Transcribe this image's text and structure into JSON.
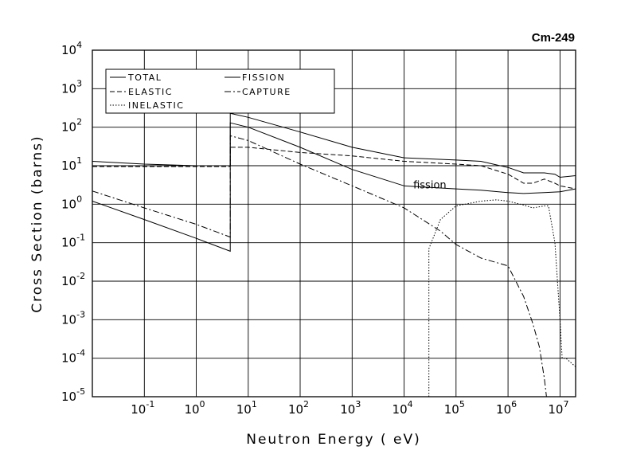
{
  "chart_data": {
    "type": "line",
    "title": "Cm-249",
    "xlabel": "Neutron Energy ( eV)",
    "ylabel": "Cross Section (barns)",
    "xscale": "log",
    "yscale": "log",
    "xlim": [
      0.01,
      20000000
    ],
    "ylim": [
      1e-05,
      10000
    ],
    "grid": true,
    "legend_position": "top-left",
    "x_ticks": [
      {
        "base": "10",
        "exp": "-1",
        "value": 0.1
      },
      {
        "base": "10",
        "exp": "0",
        "value": 1
      },
      {
        "base": "10",
        "exp": "1",
        "value": 10
      },
      {
        "base": "10",
        "exp": "2",
        "value": 100
      },
      {
        "base": "10",
        "exp": "3",
        "value": 1000
      },
      {
        "base": "10",
        "exp": "4",
        "value": 10000
      },
      {
        "base": "10",
        "exp": "5",
        "value": 100000
      },
      {
        "base": "10",
        "exp": "6",
        "value": 1000000
      },
      {
        "base": "10",
        "exp": "7",
        "value": 10000000
      }
    ],
    "y_ticks": [
      {
        "base": "10",
        "exp": "4",
        "value": 10000
      },
      {
        "base": "10",
        "exp": "3",
        "value": 1000
      },
      {
        "base": "10",
        "exp": "2",
        "value": 100
      },
      {
        "base": "10",
        "exp": "1",
        "value": 10
      },
      {
        "base": "10",
        "exp": "0",
        "value": 1
      },
      {
        "base": "10",
        "exp": "-1",
        "value": 0.1
      },
      {
        "base": "10",
        "exp": "-2",
        "value": 0.01
      },
      {
        "base": "10",
        "exp": "-3",
        "value": 0.001
      },
      {
        "base": "10",
        "exp": "-4",
        "value": 0.0001
      },
      {
        "base": "10",
        "exp": "-5",
        "value": 1e-05
      }
    ],
    "annotations": [
      {
        "text": "fission",
        "x": 15000,
        "y": 2.6
      }
    ],
    "series": [
      {
        "name": "TOTAL",
        "dash": "solid",
        "points": [
          [
            0.01,
            13
          ],
          [
            0.1,
            11
          ],
          [
            1,
            10
          ],
          [
            4.5,
            10
          ],
          [
            4.5,
            230
          ],
          [
            10,
            180
          ],
          [
            100,
            75
          ],
          [
            1000,
            30
          ],
          [
            10000,
            16
          ],
          [
            100000,
            14
          ],
          [
            300000,
            13
          ],
          [
            1000000,
            9
          ],
          [
            2000000,
            6.5
          ],
          [
            5000000,
            6.5
          ],
          [
            8000000,
            6
          ],
          [
            10000000,
            5
          ],
          [
            20000000,
            5.5
          ]
        ]
      },
      {
        "name": "ELASTIC",
        "dash": "dashed",
        "points": [
          [
            0.01,
            9.5
          ],
          [
            0.1,
            9.5
          ],
          [
            1,
            9.5
          ],
          [
            4.5,
            9.5
          ],
          [
            4.5,
            30
          ],
          [
            10,
            30
          ],
          [
            100,
            22
          ],
          [
            1000,
            18
          ],
          [
            10000,
            13
          ],
          [
            100000,
            11
          ],
          [
            300000,
            10
          ],
          [
            1000000,
            6
          ],
          [
            2000000,
            3.5
          ],
          [
            3000000,
            3.5
          ],
          [
            5000000,
            4.5
          ],
          [
            8000000,
            3.5
          ],
          [
            10000000,
            3
          ],
          [
            20000000,
            2.5
          ]
        ]
      },
      {
        "name": "INELASTIC",
        "dash": "dotted",
        "points": [
          [
            30000,
            1e-05
          ],
          [
            30000,
            0.07
          ],
          [
            50000,
            0.4
          ],
          [
            100000,
            0.9
          ],
          [
            300000,
            1.2
          ],
          [
            600000,
            1.3
          ],
          [
            1000000,
            1.2
          ],
          [
            2000000,
            0.95
          ],
          [
            3000000,
            0.8
          ],
          [
            5000000,
            0.9
          ],
          [
            6000000,
            0.9
          ],
          [
            8000000,
            0.1
          ],
          [
            10000000,
            0.001
          ],
          [
            11000000,
            0.0001
          ],
          [
            13000000,
            0.0001
          ],
          [
            20000000,
            6e-05
          ]
        ]
      },
      {
        "name": "FISSION",
        "dash": "solid",
        "points": [
          [
            0.01,
            1.2
          ],
          [
            0.1,
            0.4
          ],
          [
            1,
            0.13
          ],
          [
            4.5,
            0.06
          ],
          [
            4.5,
            130
          ],
          [
            10,
            100
          ],
          [
            100,
            30
          ],
          [
            1000,
            8
          ],
          [
            10000,
            3
          ],
          [
            100000,
            2.5
          ],
          [
            300000,
            2.3
          ],
          [
            1000000,
            2
          ],
          [
            2000000,
            1.9
          ],
          [
            5000000,
            2
          ],
          [
            10000000,
            2.1
          ],
          [
            20000000,
            2.5
          ]
        ]
      },
      {
        "name": "CAPTURE",
        "dash": "dashdot",
        "points": [
          [
            0.01,
            2.2
          ],
          [
            0.1,
            0.8
          ],
          [
            1,
            0.3
          ],
          [
            4.5,
            0.14
          ],
          [
            4.5,
            60
          ],
          [
            10,
            45
          ],
          [
            100,
            11
          ],
          [
            1000,
            3
          ],
          [
            10000,
            0.8
          ],
          [
            50000,
            0.2
          ],
          [
            100000,
            0.09
          ],
          [
            300000,
            0.04
          ],
          [
            1000000,
            0.025
          ],
          [
            2000000,
            0.004
          ],
          [
            3000000,
            0.0008
          ],
          [
            4000000,
            0.0002
          ],
          [
            5000000,
            3e-05
          ],
          [
            5500000,
            1e-05
          ]
        ]
      }
    ]
  }
}
